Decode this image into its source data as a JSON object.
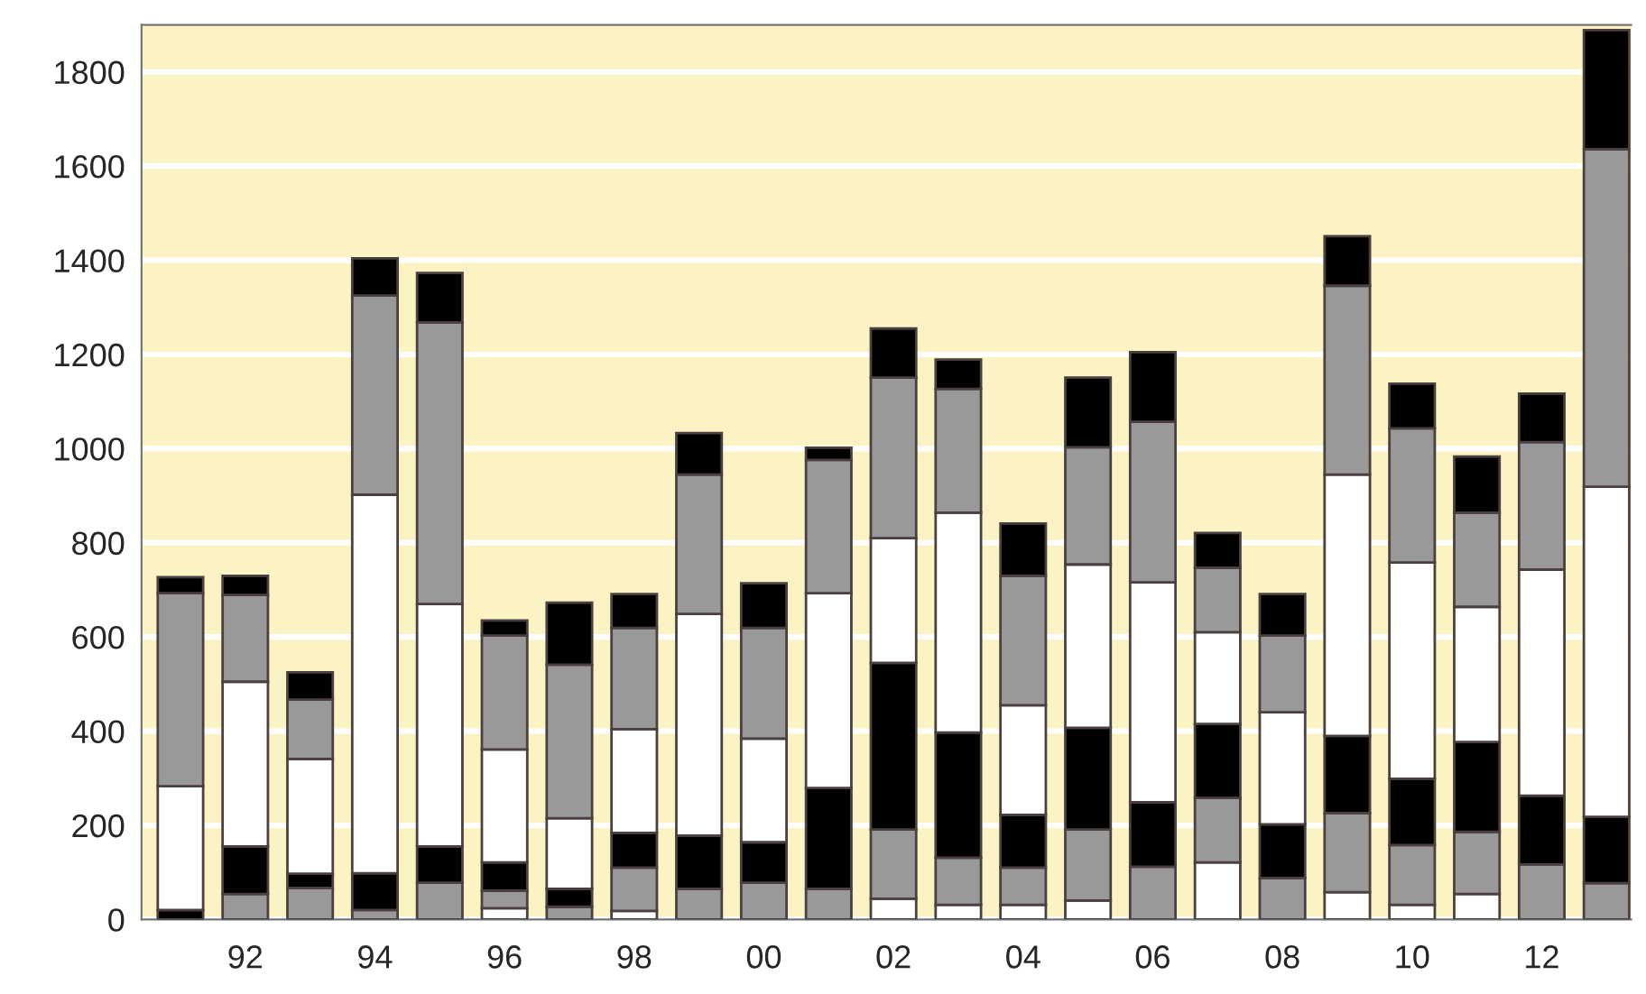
{
  "chart_data": {
    "type": "bar",
    "stacked": true,
    "categories": [
      null,
      "92",
      null,
      "94",
      null,
      "96",
      null,
      "98",
      null,
      "00",
      null,
      "02",
      null,
      "04",
      null,
      "06",
      null,
      "08",
      null,
      "10",
      null,
      "12",
      null
    ],
    "series": [
      {
        "color": "#ffffff",
        "values": [
          0,
          0,
          0,
          0,
          0,
          24,
          0,
          18,
          0,
          0,
          0,
          44,
          31,
          31,
          40,
          0,
          121,
          0,
          58,
          31,
          54,
          0,
          0
        ]
      },
      {
        "color": "#999999",
        "values": [
          0,
          54,
          67,
          20,
          78,
          37,
          27,
          92,
          65,
          78,
          65,
          147,
          100,
          79,
          151,
          112,
          137,
          88,
          168,
          127,
          132,
          117,
          77
        ]
      },
      {
        "color": "#000000",
        "values": [
          20,
          101,
          30,
          78,
          77,
          60,
          38,
          74,
          113,
          86,
          214,
          354,
          266,
          112,
          216,
          137,
          157,
          114,
          164,
          141,
          191,
          146,
          141
        ]
      },
      {
        "color": "#ffffff",
        "values": [
          263,
          350,
          244,
          804,
          515,
          240,
          150,
          220,
          471,
          220,
          414,
          265,
          467,
          233,
          347,
          467,
          195,
          238,
          555,
          459,
          287,
          480,
          701
        ]
      },
      {
        "color": "#999999",
        "values": [
          410,
          184,
          126,
          423,
          598,
          242,
          326,
          215,
          296,
          235,
          283,
          341,
          263,
          275,
          249,
          341,
          137,
          163,
          401,
          285,
          200,
          271,
          717
        ]
      },
      {
        "color": "#000000",
        "values": [
          34,
          41,
          58,
          79,
          105,
          32,
          132,
          72,
          88,
          95,
          26,
          104,
          62,
          111,
          148,
          148,
          74,
          88,
          105,
          95,
          119,
          103,
          253
        ]
      }
    ],
    "ylim": [
      0,
      1900
    ],
    "yticks": [
      0,
      200,
      400,
      600,
      800,
      1000,
      1200,
      1400,
      1600,
      1800
    ],
    "grid": "y",
    "legend": false
  }
}
